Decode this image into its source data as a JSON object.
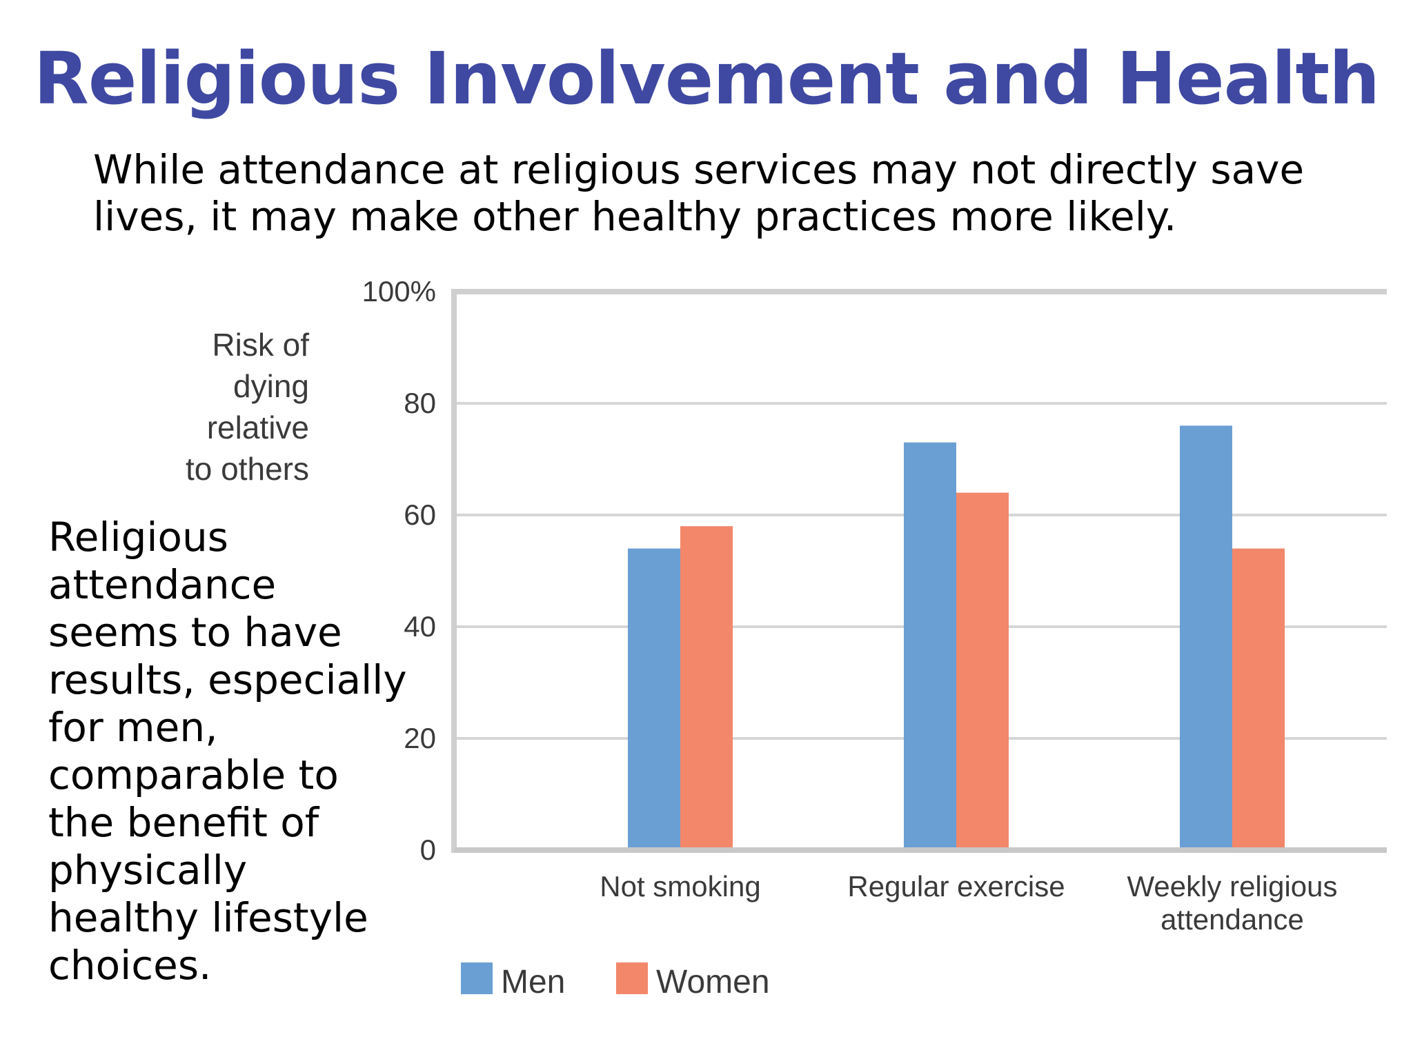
{
  "slide": {
    "title": "Religious Involvement and Health",
    "subtitle": "While attendance at religious services may not directly save lives, it may make other healthy practices more likely.",
    "side_text": "Religious attendance seems to have results, especially for men, comparable to the benefit of physically healthy lifestyle choices."
  },
  "chart_data": {
    "type": "bar",
    "ylabel_lines": [
      "Risk of",
      "dying",
      "relative",
      "to others"
    ],
    "ylim": [
      0,
      100
    ],
    "y_ticks": [
      {
        "value": 0,
        "label": "0"
      },
      {
        "value": 20,
        "label": "20"
      },
      {
        "value": 40,
        "label": "40"
      },
      {
        "value": 60,
        "label": "60"
      },
      {
        "value": 80,
        "label": "80"
      },
      {
        "value": 100,
        "label": "100%"
      }
    ],
    "categories": [
      {
        "lines": [
          "Not smoking"
        ]
      },
      {
        "lines": [
          "Regular exercise"
        ]
      },
      {
        "lines": [
          "Weekly religious",
          "attendance"
        ]
      }
    ],
    "series": [
      {
        "name": "Men",
        "color": "#6a9fd4",
        "values": [
          54,
          73,
          76
        ]
      },
      {
        "name": "Women",
        "color": "#f2876a",
        "values": [
          58,
          64,
          54
        ]
      }
    ],
    "grid": true,
    "legend": "bottom-left"
  }
}
